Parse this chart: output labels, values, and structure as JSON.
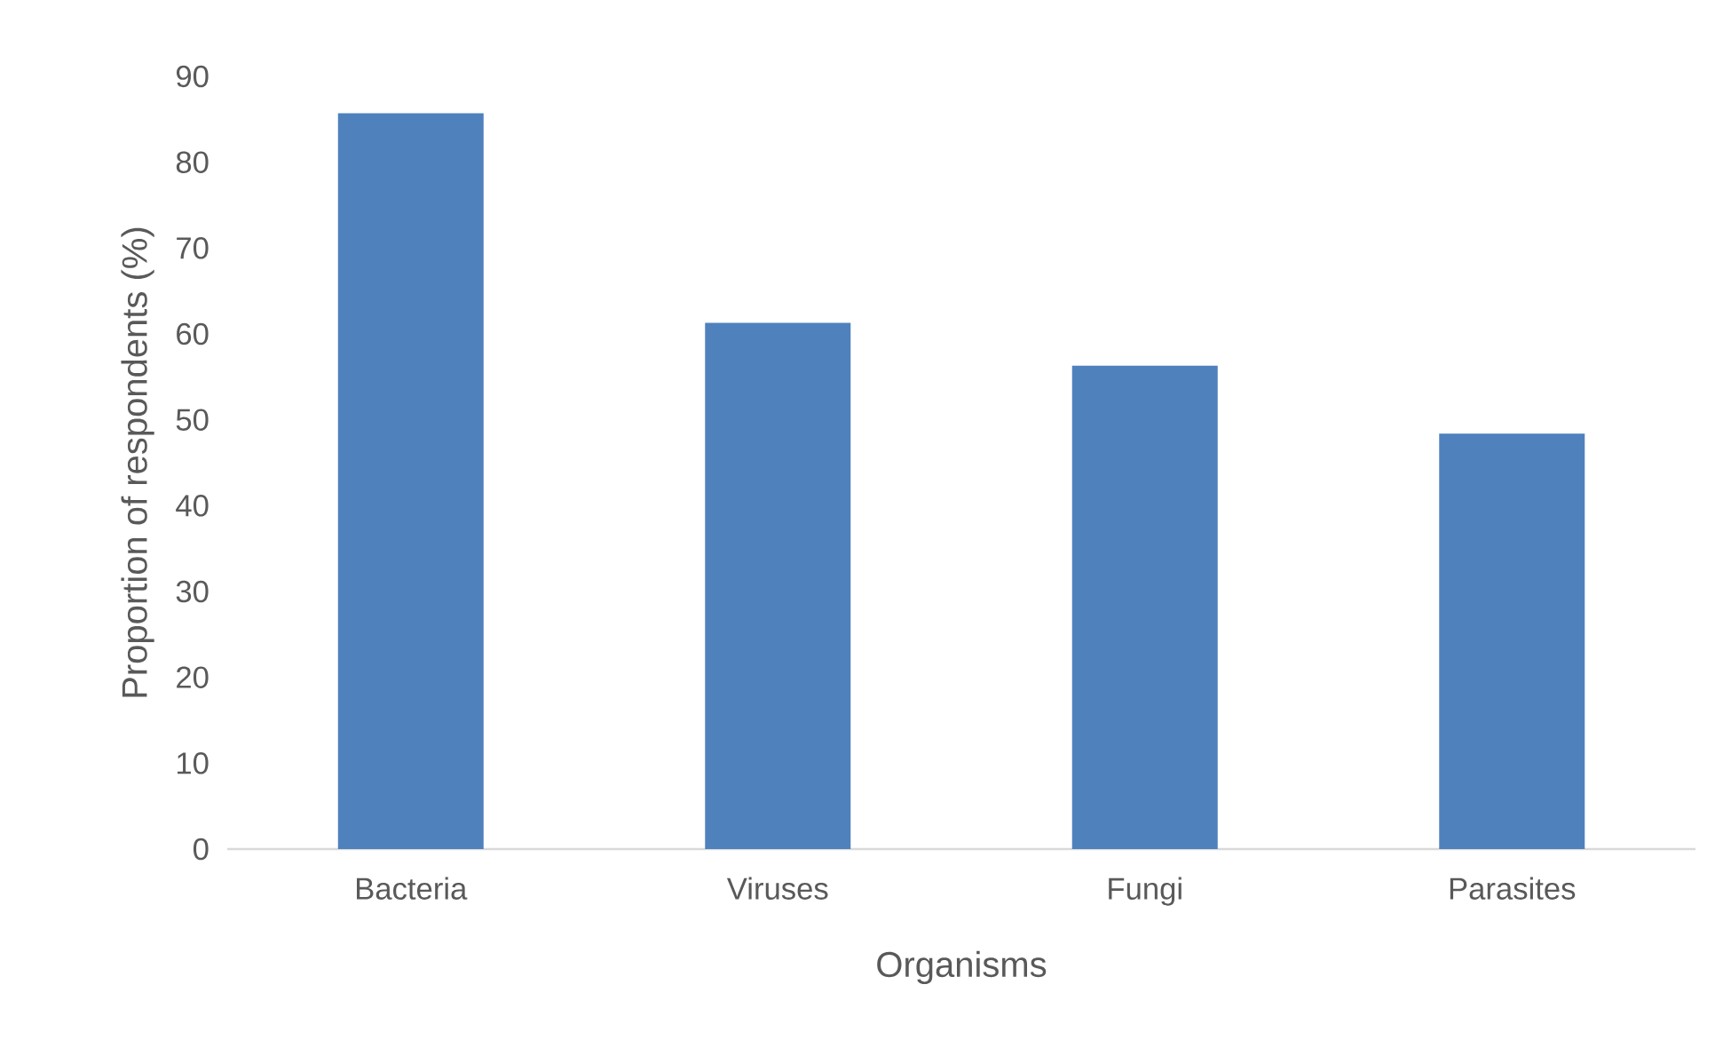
{
  "chart_data": {
    "type": "bar",
    "xlabel": "Organisms",
    "ylabel": "Proportion of respondents (%)",
    "categories": [
      "Bacteria",
      "Viruses",
      "Fungi",
      "Parasites"
    ],
    "values": [
      85.7,
      61.3,
      56.3,
      48.4
    ],
    "color": "#4f81bd",
    "ylim": [
      0,
      90
    ],
    "yticks": [
      0,
      10,
      20,
      30,
      40,
      50,
      60,
      70,
      80,
      90
    ]
  }
}
